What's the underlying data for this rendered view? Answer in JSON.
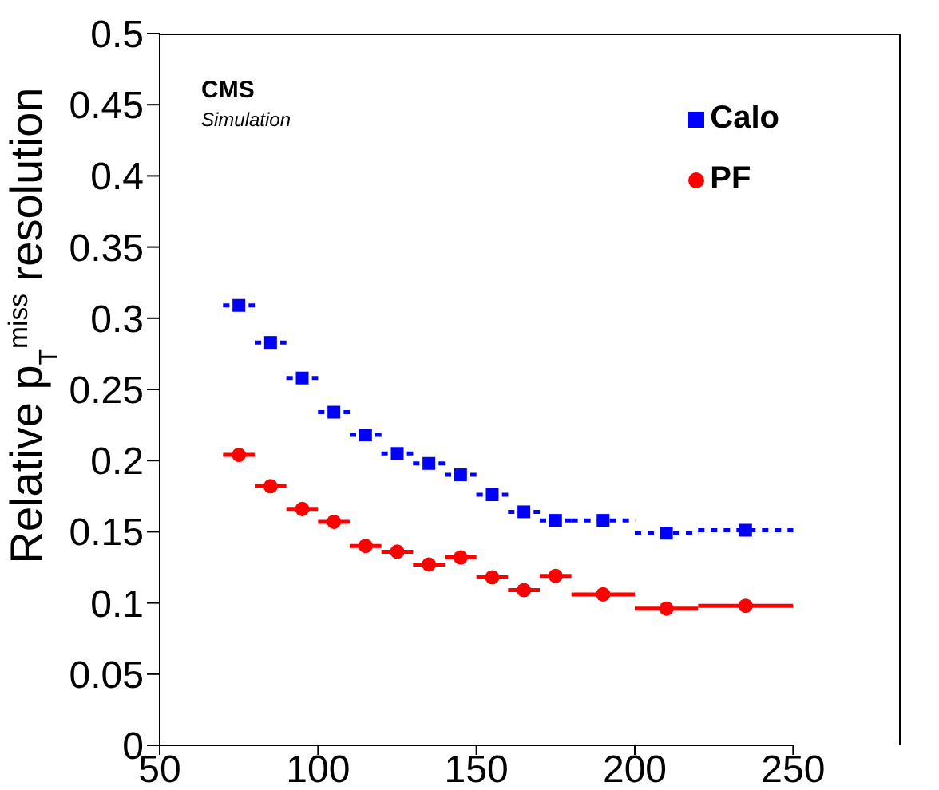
{
  "chart_data": {
    "type": "scatter",
    "ylabel": "Relative p$_{T}$$^{miss}$ resolution",
    "annotations": [
      "CMS",
      "Simulation"
    ],
    "x": [
      75,
      85,
      95,
      105,
      115,
      125,
      135,
      145,
      155,
      165,
      175,
      190,
      210,
      235
    ],
    "series": [
      {
        "name": "Calo",
        "color": "#0000ff",
        "marker": "square",
        "line_style": "dashed",
        "values": [
          0.309,
          0.283,
          0.258,
          0.234,
          0.218,
          0.205,
          0.198,
          0.19,
          0.176,
          0.164,
          0.158,
          0.158,
          0.149,
          0.151
        ],
        "xerrors": [
          5,
          5,
          5,
          5,
          5,
          5,
          5,
          5,
          5,
          5,
          5,
          10,
          10,
          15
        ]
      },
      {
        "name": "PF",
        "color": "#ff0000",
        "marker": "circle",
        "line_style": "solid",
        "values": [
          0.204,
          0.182,
          0.166,
          0.157,
          0.14,
          0.136,
          0.127,
          0.132,
          0.118,
          0.109,
          0.119,
          0.106,
          0.096,
          0.098
        ],
        "xerrors": [
          5,
          5,
          5,
          5,
          5,
          5,
          5,
          5,
          5,
          5,
          5,
          10,
          10,
          15
        ]
      }
    ],
    "xlim": [
      50,
      250
    ],
    "xticks": [
      50,
      100,
      150,
      200,
      250
    ],
    "ylim": [
      0,
      0.5
    ],
    "yticks": [
      0,
      0.05,
      0.1,
      0.15,
      0.2,
      0.25,
      0.3,
      0.35,
      0.4,
      0.45,
      0.5
    ],
    "grid": false,
    "legend": "top right"
  }
}
